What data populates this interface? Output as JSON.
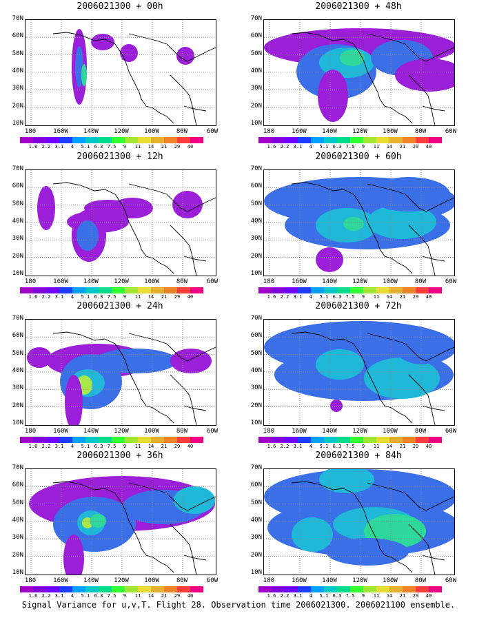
{
  "panels": [
    {
      "title": "2006021300 + 00h",
      "blobs": [
        [
          78,
          68,
          11,
          55,
          0
        ],
        [
          78,
          68,
          6,
          30,
          1
        ],
        [
          85,
          80,
          4,
          16,
          3
        ],
        [
          112,
          32,
          17,
          12,
          0
        ],
        [
          150,
          48,
          13,
          13,
          0
        ],
        [
          232,
          52,
          13,
          13,
          0
        ]
      ]
    },
    {
      "title": "2006021300 + 48h",
      "blobs": [
        [
          140,
          40,
          140,
          28,
          0
        ],
        [
          105,
          75,
          58,
          40,
          1
        ],
        [
          120,
          62,
          40,
          22,
          2
        ],
        [
          128,
          55,
          18,
          12,
          3
        ],
        [
          200,
          55,
          45,
          26,
          1
        ],
        [
          240,
          80,
          50,
          24,
          0
        ],
        [
          100,
          110,
          22,
          38,
          0
        ]
      ]
    },
    {
      "title": "2006021300 + 12h",
      "blobs": [
        [
          30,
          55,
          13,
          32,
          0
        ],
        [
          105,
          75,
          45,
          16,
          0
        ],
        [
          92,
          95,
          25,
          38,
          0
        ],
        [
          90,
          95,
          16,
          22,
          1
        ],
        [
          120,
          55,
          35,
          12,
          0
        ],
        [
          155,
          55,
          30,
          15,
          0
        ],
        [
          235,
          50,
          22,
          20,
          0
        ]
      ]
    },
    {
      "title": "2006021300 + 60h",
      "blobs": [
        [
          140,
          45,
          140,
          35,
          1
        ],
        [
          150,
          80,
          120,
          35,
          1
        ],
        [
          120,
          80,
          45,
          25,
          2
        ],
        [
          130,
          78,
          15,
          10,
          3
        ],
        [
          200,
          75,
          50,
          25,
          2
        ],
        [
          210,
          35,
          60,
          25,
          1
        ],
        [
          95,
          130,
          20,
          18,
          0
        ]
      ]
    },
    {
      "title": "2006021300 + 24h",
      "blobs": [
        [
          20,
          55,
          18,
          15,
          0
        ],
        [
          105,
          60,
          75,
          25,
          0
        ],
        [
          95,
          90,
          45,
          40,
          1
        ],
        [
          90,
          92,
          25,
          20,
          2
        ],
        [
          85,
          95,
          12,
          14,
          4
        ],
        [
          160,
          60,
          60,
          18,
          1
        ],
        [
          240,
          60,
          30,
          18,
          0
        ],
        [
          70,
          120,
          13,
          40,
          0
        ]
      ]
    },
    {
      "title": "2006021300 + 72h",
      "blobs": [
        [
          140,
          40,
          140,
          38,
          1
        ],
        [
          145,
          80,
          130,
          38,
          1
        ],
        [
          110,
          65,
          35,
          22,
          2
        ],
        [
          200,
          85,
          55,
          30,
          2
        ],
        [
          230,
          40,
          40,
          25,
          1
        ],
        [
          105,
          125,
          9,
          9,
          0
        ]
      ]
    },
    {
      "title": "2006021300 + 36h",
      "blobs": [
        [
          140,
          50,
          135,
          40,
          0
        ],
        [
          100,
          80,
          60,
          40,
          1
        ],
        [
          95,
          78,
          20,
          18,
          2
        ],
        [
          90,
          78,
          8,
          8,
          4
        ],
        [
          105,
          75,
          12,
          10,
          3
        ],
        [
          200,
          55,
          60,
          25,
          1
        ],
        [
          70,
          130,
          15,
          35,
          0
        ],
        [
          245,
          45,
          30,
          20,
          2
        ]
      ]
    },
    {
      "title": "2006021300 + 84h",
      "blobs": [
        [
          140,
          40,
          140,
          40,
          1
        ],
        [
          145,
          85,
          140,
          42,
          1
        ],
        [
          120,
          15,
          40,
          20,
          2
        ],
        [
          160,
          80,
          60,
          25,
          2
        ],
        [
          190,
          90,
          45,
          25,
          3
        ],
        [
          70,
          95,
          30,
          25,
          2
        ],
        [
          150,
          120,
          60,
          20,
          1
        ]
      ]
    }
  ],
  "axis": {
    "y_ticks": [
      "70N",
      "60N",
      "50N",
      "40N",
      "30N",
      "20N",
      "10N"
    ],
    "x_ticks": [
      "180",
      "160W",
      "140W",
      "120W",
      "100W",
      "80W",
      "60W"
    ]
  },
  "colorbar": {
    "labels": [
      "1.6",
      "2.2",
      "3.1",
      "4",
      "5.1",
      "6.3",
      "7.5",
      "9",
      "11",
      "14",
      "21",
      "29",
      "40"
    ],
    "colors": [
      "#a000c8",
      "#8200dc",
      "#6e00ff",
      "#1e3cff",
      "#00a0ff",
      "#00c8c8",
      "#00dc8c",
      "#32ff32",
      "#a0e632",
      "#e6dc32",
      "#e6af2d",
      "#f08228",
      "#fa3c3c",
      "#f00082"
    ]
  },
  "fill_colors": [
    "#9b1fd9",
    "#3b6fe8",
    "#1fb8d8",
    "#2ed89a",
    "#a8e84b"
  ],
  "caption": "Signal Variance for u,v,T. Flight 28. Observation time 2006021300. 2006021100 ensemble."
}
